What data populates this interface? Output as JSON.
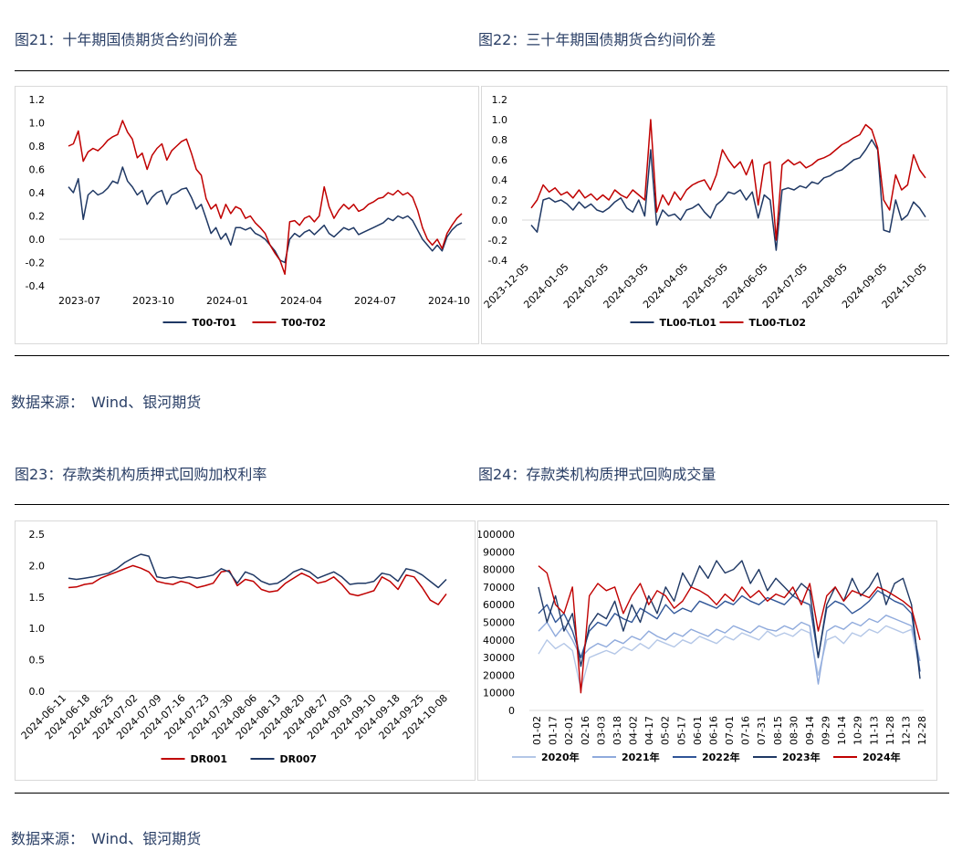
{
  "sections": [
    {
      "figs": [
        {
          "title": "图21：十年期国债期货合约间价差"
        },
        {
          "title": "图22：三十年期国债期货合约间价差"
        }
      ],
      "source": "数据来源：　Wind、银河期货"
    },
    {
      "figs": [
        {
          "title": "图23：存款类机构质押式回购加权利率"
        },
        {
          "title": "图24：存款类机构质押式回购成交量"
        }
      ],
      "source": "数据来源：　Wind、银河期货"
    }
  ],
  "colors": {
    "navy": "#1f3864",
    "red": "#c00000",
    "light1": "#a9c0e8",
    "light2": "#8eaadb",
    "mid": "#2f5597"
  },
  "chart_data": [
    {
      "type": "line",
      "ylim": [
        -0.4,
        1.2
      ],
      "yticks": [
        "1.2",
        "1.0",
        "0.8",
        "0.6",
        "0.4",
        "0.2",
        "0.0",
        "-0.2",
        "-0.4"
      ],
      "xticks": [
        "2023-07",
        "2023-10",
        "2024-01",
        "2024-04",
        "2024-07",
        "2024-10"
      ],
      "series": [
        {
          "name": "T00-T01",
          "color": "#1f3864",
          "values": [
            0.45,
            0.4,
            0.52,
            0.17,
            0.38,
            0.42,
            0.38,
            0.4,
            0.44,
            0.5,
            0.48,
            0.62,
            0.5,
            0.45,
            0.38,
            0.42,
            0.3,
            0.36,
            0.4,
            0.42,
            0.3,
            0.38,
            0.4,
            0.43,
            0.44,
            0.36,
            0.26,
            0.3,
            0.18,
            0.05,
            0.1,
            0.0,
            0.05,
            -0.05,
            0.1,
            0.1,
            0.08,
            0.1,
            0.05,
            0.03,
            0.0,
            -0.05,
            -0.1,
            -0.18,
            -0.2,
            0.0,
            0.05,
            0.02,
            0.06,
            0.08,
            0.04,
            0.08,
            0.12,
            0.05,
            0.02,
            0.06,
            0.1,
            0.08,
            0.1,
            0.04,
            0.06,
            0.08,
            0.1,
            0.12,
            0.14,
            0.18,
            0.16,
            0.2,
            0.18,
            0.2,
            0.16,
            0.08,
            0.0,
            -0.05,
            -0.1,
            -0.05,
            -0.1,
            0.02,
            0.08,
            0.12,
            0.14
          ]
        },
        {
          "name": "T00-T02",
          "color": "#c00000",
          "values": [
            0.8,
            0.82,
            0.93,
            0.67,
            0.75,
            0.78,
            0.76,
            0.8,
            0.85,
            0.88,
            0.9,
            1.02,
            0.92,
            0.86,
            0.7,
            0.74,
            0.6,
            0.72,
            0.78,
            0.82,
            0.68,
            0.76,
            0.8,
            0.84,
            0.86,
            0.74,
            0.6,
            0.55,
            0.35,
            0.26,
            0.3,
            0.18,
            0.3,
            0.22,
            0.28,
            0.26,
            0.18,
            0.2,
            0.14,
            0.1,
            0.05,
            -0.05,
            -0.12,
            -0.18,
            -0.3,
            0.15,
            0.16,
            0.12,
            0.18,
            0.2,
            0.15,
            0.2,
            0.45,
            0.28,
            0.18,
            0.25,
            0.3,
            0.26,
            0.3,
            0.24,
            0.26,
            0.3,
            0.32,
            0.35,
            0.36,
            0.4,
            0.38,
            0.42,
            0.38,
            0.4,
            0.36,
            0.25,
            0.1,
            0.0,
            -0.05,
            0.0,
            -0.08,
            0.05,
            0.12,
            0.18,
            0.22
          ]
        }
      ]
    },
    {
      "type": "line",
      "ylim": [
        -0.4,
        1.2
      ],
      "yticks": [
        "1.2",
        "1.0",
        "0.8",
        "0.6",
        "0.4",
        "0.2",
        "0.0",
        "-0.2",
        "-0.4"
      ],
      "xticks": [
        "2023-12-05",
        "2024-01-05",
        "2024-02-05",
        "2024-03-05",
        "2024-04-05",
        "2024-05-05",
        "2024-06-05",
        "2024-07-05",
        "2024-08-05",
        "2024-09-05",
        "2024-10-05"
      ],
      "series": [
        {
          "name": "TL00-TL01",
          "color": "#1f3864",
          "values": [
            -0.05,
            -0.12,
            0.2,
            0.22,
            0.18,
            0.2,
            0.16,
            0.1,
            0.18,
            0.12,
            0.16,
            0.1,
            0.08,
            0.12,
            0.18,
            0.22,
            0.12,
            0.08,
            0.2,
            0.04,
            0.7,
            -0.05,
            0.1,
            0.04,
            0.06,
            0.0,
            0.1,
            0.12,
            0.16,
            0.08,
            0.02,
            0.15,
            0.2,
            0.28,
            0.26,
            0.3,
            0.2,
            0.28,
            0.02,
            0.25,
            0.2,
            -0.3,
            0.3,
            0.32,
            0.3,
            0.34,
            0.32,
            0.38,
            0.36,
            0.42,
            0.44,
            0.48,
            0.5,
            0.55,
            0.6,
            0.62,
            0.7,
            0.8,
            0.7,
            -0.1,
            -0.12,
            0.2,
            0.0,
            0.05,
            0.18,
            0.12,
            0.03
          ]
        },
        {
          "name": "TL00-TL02",
          "color": "#c00000",
          "values": [
            0.12,
            0.2,
            0.35,
            0.28,
            0.32,
            0.25,
            0.28,
            0.22,
            0.3,
            0.22,
            0.26,
            0.2,
            0.25,
            0.2,
            0.3,
            0.25,
            0.22,
            0.3,
            0.25,
            0.2,
            1.0,
            0.08,
            0.25,
            0.15,
            0.28,
            0.2,
            0.3,
            0.35,
            0.38,
            0.4,
            0.3,
            0.45,
            0.7,
            0.6,
            0.52,
            0.58,
            0.45,
            0.6,
            0.15,
            0.55,
            0.58,
            -0.2,
            0.55,
            0.6,
            0.55,
            0.58,
            0.52,
            0.55,
            0.6,
            0.62,
            0.65,
            0.7,
            0.75,
            0.78,
            0.82,
            0.85,
            0.95,
            0.9,
            0.72,
            0.2,
            0.1,
            0.45,
            0.3,
            0.35,
            0.65,
            0.5,
            0.42
          ]
        }
      ]
    },
    {
      "type": "line",
      "ylim": [
        0,
        2.5
      ],
      "yticks": [
        "2.5",
        "2.0",
        "1.5",
        "1.0",
        "0.5",
        "0.0"
      ],
      "xticks": [
        "2024-06-11",
        "2024-06-18",
        "2024-06-25",
        "2024-07-02",
        "2024-07-09",
        "2024-07-16",
        "2024-07-23",
        "2024-07-30",
        "2024-08-06",
        "2024-08-13",
        "2024-08-20",
        "2024-08-27",
        "2024-09-03",
        "2024-09-10",
        "2024-09-18",
        "2024-09-25",
        "2024-10-08"
      ],
      "series": [
        {
          "name": "DR001",
          "color": "#c00000",
          "values": [
            1.65,
            1.66,
            1.7,
            1.72,
            1.8,
            1.85,
            1.9,
            1.95,
            2.0,
            1.96,
            1.9,
            1.75,
            1.72,
            1.7,
            1.75,
            1.72,
            1.65,
            1.68,
            1.72,
            1.9,
            1.92,
            1.68,
            1.78,
            1.75,
            1.62,
            1.58,
            1.6,
            1.72,
            1.8,
            1.88,
            1.82,
            1.72,
            1.75,
            1.82,
            1.7,
            1.55,
            1.52,
            1.56,
            1.6,
            1.82,
            1.75,
            1.62,
            1.85,
            1.82,
            1.65,
            1.45,
            1.38,
            1.55
          ]
        },
        {
          "name": "DR007",
          "color": "#1f3864",
          "values": [
            1.8,
            1.78,
            1.8,
            1.82,
            1.85,
            1.88,
            1.95,
            2.05,
            2.12,
            2.18,
            2.15,
            1.82,
            1.8,
            1.82,
            1.8,
            1.82,
            1.8,
            1.82,
            1.85,
            1.95,
            1.9,
            1.72,
            1.9,
            1.85,
            1.75,
            1.7,
            1.72,
            1.8,
            1.9,
            1.95,
            1.9,
            1.8,
            1.85,
            1.9,
            1.82,
            1.7,
            1.72,
            1.72,
            1.75,
            1.88,
            1.85,
            1.75,
            1.95,
            1.92,
            1.85,
            1.75,
            1.65,
            1.78
          ]
        }
      ]
    },
    {
      "type": "line",
      "ylim": [
        0,
        100000
      ],
      "yticks": [
        "100000",
        "90000",
        "80000",
        "70000",
        "60000",
        "50000",
        "40000",
        "30000",
        "20000",
        "10000",
        "0"
      ],
      "xticks": [
        "01-02",
        "01-17",
        "02-01",
        "02-16",
        "03-03",
        "03-18",
        "04-02",
        "04-17",
        "05-02",
        "05-17",
        "06-01",
        "06-16",
        "07-01",
        "07-16",
        "07-31",
        "08-15",
        "08-30",
        "09-14",
        "09-29",
        "10-14",
        "10-29",
        "11-13",
        "11-28",
        "12-13",
        "12-28"
      ],
      "series": [
        {
          "name": "2020年",
          "color": "#b4c7e7",
          "values": [
            32000,
            40000,
            35000,
            38000,
            34000,
            12000,
            30000,
            32000,
            34000,
            32000,
            36000,
            34000,
            38000,
            35000,
            40000,
            38000,
            36000,
            40000,
            38000,
            42000,
            40000,
            38000,
            42000,
            40000,
            44000,
            42000,
            40000,
            45000,
            42000,
            44000,
            42000,
            46000,
            44000,
            20000,
            40000,
            42000,
            38000,
            44000,
            42000,
            46000,
            44000,
            48000,
            46000,
            44000,
            46000,
            22000
          ]
        },
        {
          "name": "2021年",
          "color": "#8faadc",
          "values": [
            45000,
            50000,
            42000,
            48000,
            40000,
            30000,
            35000,
            38000,
            36000,
            40000,
            38000,
            42000,
            40000,
            45000,
            42000,
            40000,
            44000,
            42000,
            46000,
            44000,
            42000,
            46000,
            44000,
            48000,
            46000,
            44000,
            48000,
            46000,
            45000,
            48000,
            46000,
            50000,
            48000,
            15000,
            45000,
            48000,
            46000,
            50000,
            48000,
            52000,
            50000,
            54000,
            52000,
            50000,
            48000,
            28000
          ]
        },
        {
          "name": "2022年",
          "color": "#2f5597",
          "values": [
            55000,
            60000,
            50000,
            55000,
            45000,
            30000,
            45000,
            50000,
            48000,
            55000,
            52000,
            50000,
            58000,
            55000,
            52000,
            60000,
            55000,
            58000,
            56000,
            62000,
            60000,
            58000,
            62000,
            60000,
            65000,
            62000,
            60000,
            64000,
            62000,
            60000,
            65000,
            62000,
            60000,
            30000,
            58000,
            62000,
            60000,
            55000,
            58000,
            62000,
            68000,
            65000,
            62000,
            60000,
            55000,
            22000
          ]
        },
        {
          "name": "2023年",
          "color": "#1f3864",
          "values": [
            70000,
            50000,
            65000,
            45000,
            55000,
            25000,
            48000,
            55000,
            52000,
            62000,
            45000,
            60000,
            50000,
            65000,
            55000,
            70000,
            62000,
            78000,
            70000,
            82000,
            75000,
            85000,
            78000,
            80000,
            85000,
            72000,
            80000,
            68000,
            75000,
            70000,
            65000,
            72000,
            68000,
            30000,
            60000,
            70000,
            62000,
            75000,
            65000,
            70000,
            78000,
            60000,
            72000,
            75000,
            60000,
            18000
          ]
        },
        {
          "name": "2024年",
          "color": "#c00000",
          "values": [
            82000,
            78000,
            60000,
            55000,
            70000,
            10000,
            65000,
            72000,
            68000,
            70000,
            55000,
            65000,
            72000,
            60000,
            68000,
            65000,
            58000,
            62000,
            70000,
            68000,
            65000,
            60000,
            66000,
            62000,
            70000,
            64000,
            68000,
            62000,
            66000,
            64000,
            70000,
            60000,
            72000,
            45000,
            65000,
            70000,
            62000,
            68000,
            66000,
            64000,
            70000,
            68000,
            65000,
            62000,
            58000,
            40000
          ]
        }
      ]
    }
  ]
}
